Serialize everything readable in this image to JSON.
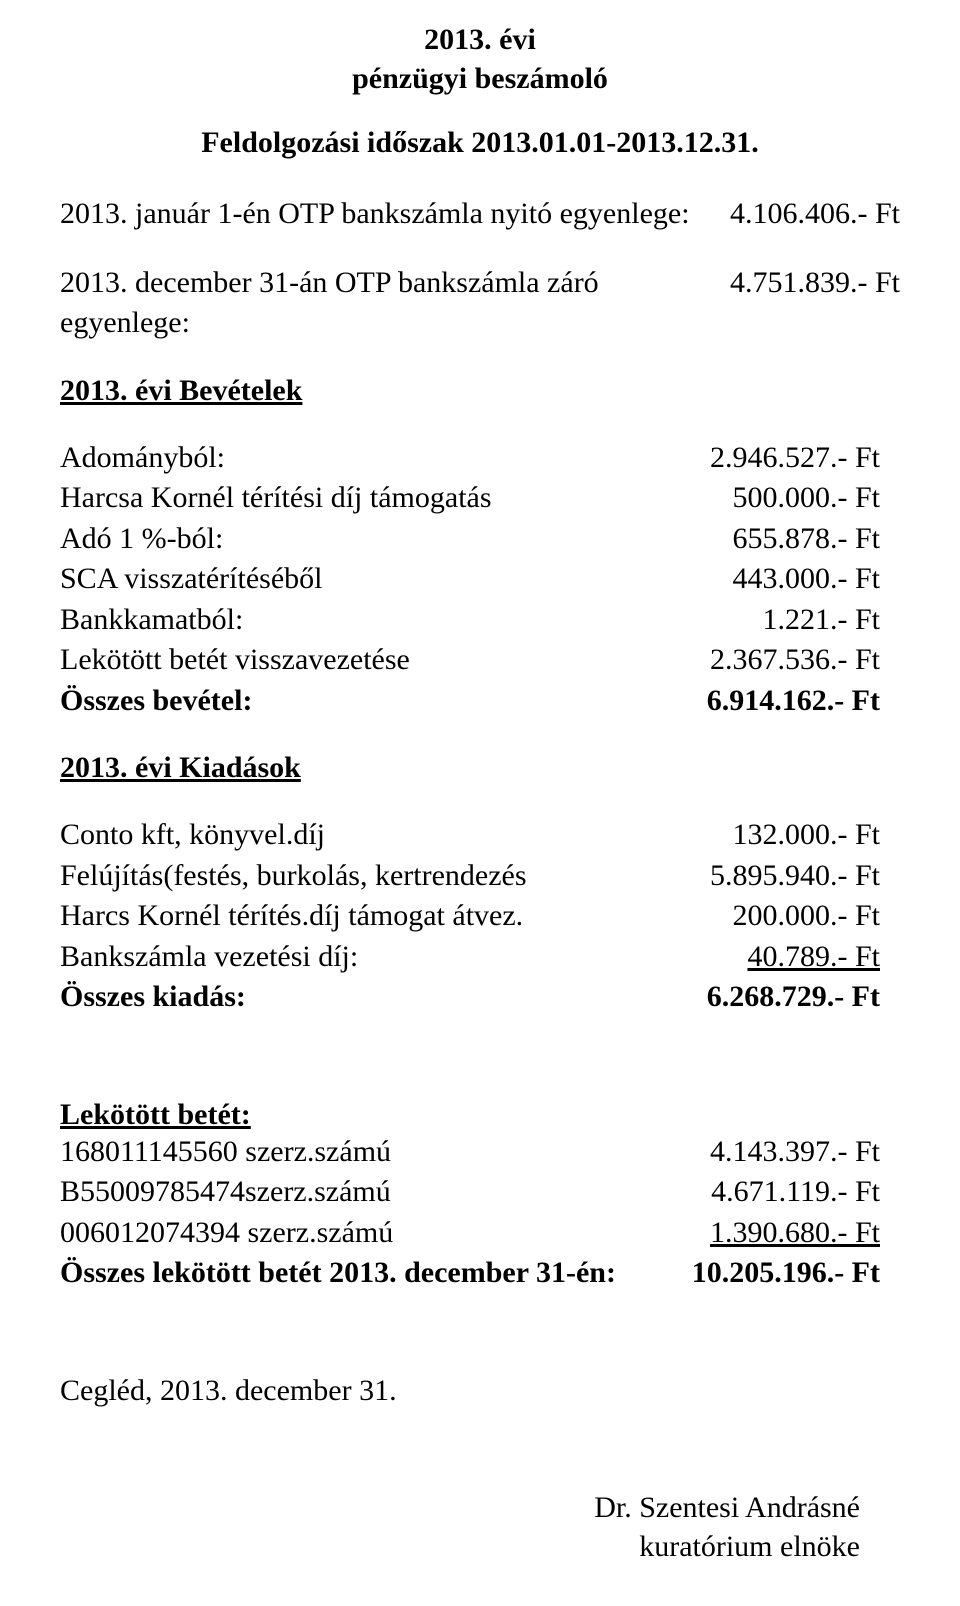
{
  "title1": "2013. évi",
  "title2": "pénzügyi beszámoló",
  "period": "Feldolgozási időszak 2013.01.01-2013.12.31.",
  "opening": {
    "label": "2013. január 1-én OTP bankszámla nyitó egyenlege:",
    "value": "4.106.406.- Ft"
  },
  "closing": {
    "label": "2013. december 31-án OTP bankszámla záró egyenlege:",
    "value": "4.751.839.- Ft"
  },
  "income_head": "2013. évi Bevételek",
  "income": [
    {
      "label": "Adományból:",
      "value": "2.946.527.- Ft"
    },
    {
      "label": "Harcsa Kornél térítési díj támogatás",
      "value": "500.000.- Ft"
    },
    {
      "label": "Adó 1 %-ból:",
      "value": "655.878.- Ft"
    },
    {
      "label": "SCA visszatérítéséből",
      "value": "443.000.- Ft"
    },
    {
      "label": "Bankkamatból:",
      "value": "1.221.- Ft"
    },
    {
      "label": "Lekötött betét visszavezetése",
      "value": "2.367.536.- Ft"
    }
  ],
  "income_total": {
    "label": "Összes bevétel:",
    "value": "6.914.162.- Ft"
  },
  "expense_head": "2013. évi Kiadások",
  "expense": [
    {
      "label": "Conto kft, könyvel.díj",
      "value": "132.000.- Ft"
    },
    {
      "label": "Felújítás(festés, burkolás, kertrendezés",
      "value": "5.895.940.- Ft"
    },
    {
      "label": "Harcs Kornél térítés.díj támogat átvez.",
      "value": "200.000.- Ft"
    },
    {
      "label": "Bankszámla vezetési díj:",
      "value": "  40.789.- Ft",
      "underline": true
    }
  ],
  "expense_total": {
    "label": "Összes kiadás:",
    "value": "6.268.729.- Ft"
  },
  "deposit_head": "Lekötött betét:",
  "deposit": [
    {
      "label": "168011145560 szerz.számú",
      "value": "4.143.397.- Ft"
    },
    {
      "label": "B55009785474szerz.számú",
      "value": "4.671.119.- Ft"
    },
    {
      "label": "006012074394 szerz.számú",
      "value": "1.390.680.- Ft",
      "underline": true
    }
  ],
  "deposit_total": {
    "label": "Összes lekötött betét 2013. december 31-én:",
    "value": "10.205.196.-  Ft"
  },
  "date": "Cegléd, 2013. december 31.",
  "sign_name": "Dr. Szentesi Andrásné",
  "sign_title": "kuratórium elnöke"
}
